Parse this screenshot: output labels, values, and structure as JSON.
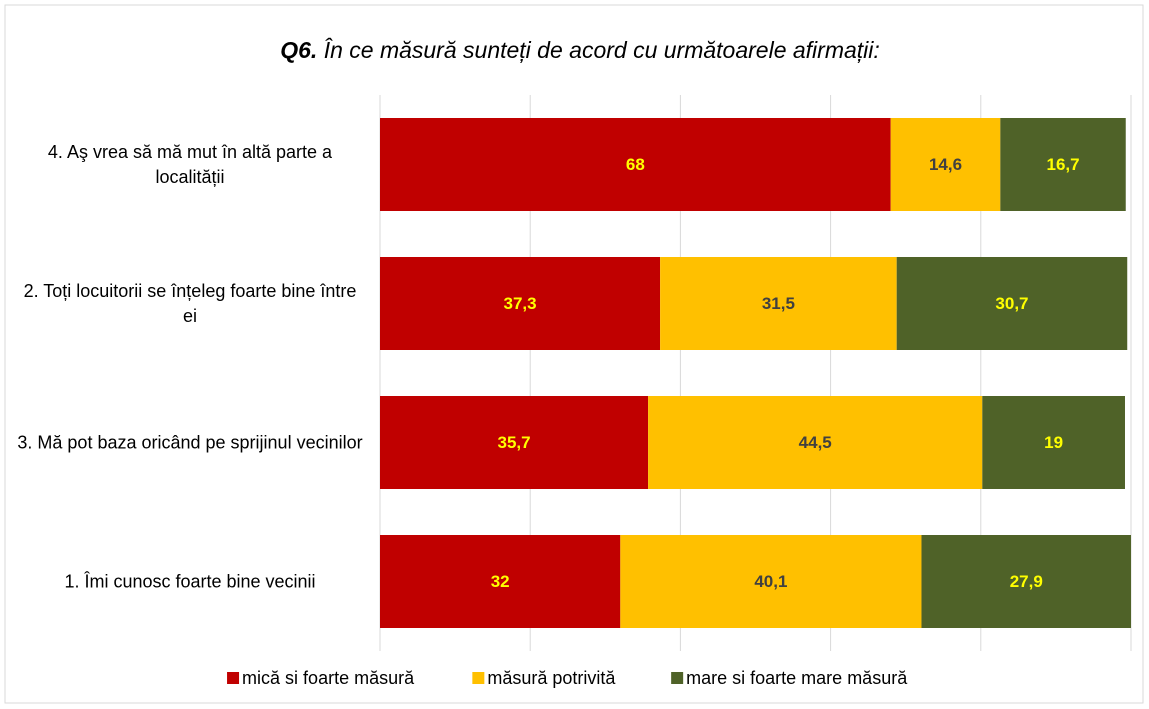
{
  "chart_data": {
    "type": "stacked-bar-horizontal",
    "title_label": "Q6.",
    "title": "În ce măsură sunteți de acord cu următoarele afirmații:",
    "categories": [
      "4. Aş vrea să mă mut în altă parte a localității",
      "2. Toți locuitorii se înțeleg foarte bine între ei",
      "3. Mă pot baza oricând pe sprijinul vecinilor",
      "1. Îmi cunosc foarte bine vecinii"
    ],
    "series": [
      {
        "name": "mică si foarte măsură",
        "color": "#c00000",
        "label_color": "#ffff00",
        "values": [
          68,
          37.3,
          35.7,
          32
        ],
        "value_labels": [
          "68",
          "37,3",
          "35,7",
          "32"
        ]
      },
      {
        "name": "măsură potrivită",
        "color": "#ffc000",
        "label_color": "#404040",
        "values": [
          14.6,
          31.5,
          44.5,
          40.1
        ],
        "value_labels": [
          "14,6",
          "31,5",
          "44,5",
          "40,1"
        ]
      },
      {
        "name": "mare si foarte mare măsură",
        "color": "#4f6228",
        "label_color": "#ffff00",
        "values": [
          16.7,
          30.7,
          19,
          27.9
        ],
        "value_labels": [
          "16,7",
          "30,7",
          "19",
          "27,9"
        ]
      }
    ],
    "xlim": [
      0,
      100
    ],
    "xticks": [
      0,
      20,
      40,
      60,
      80,
      100
    ],
    "grid": true,
    "legend": "bottom"
  }
}
